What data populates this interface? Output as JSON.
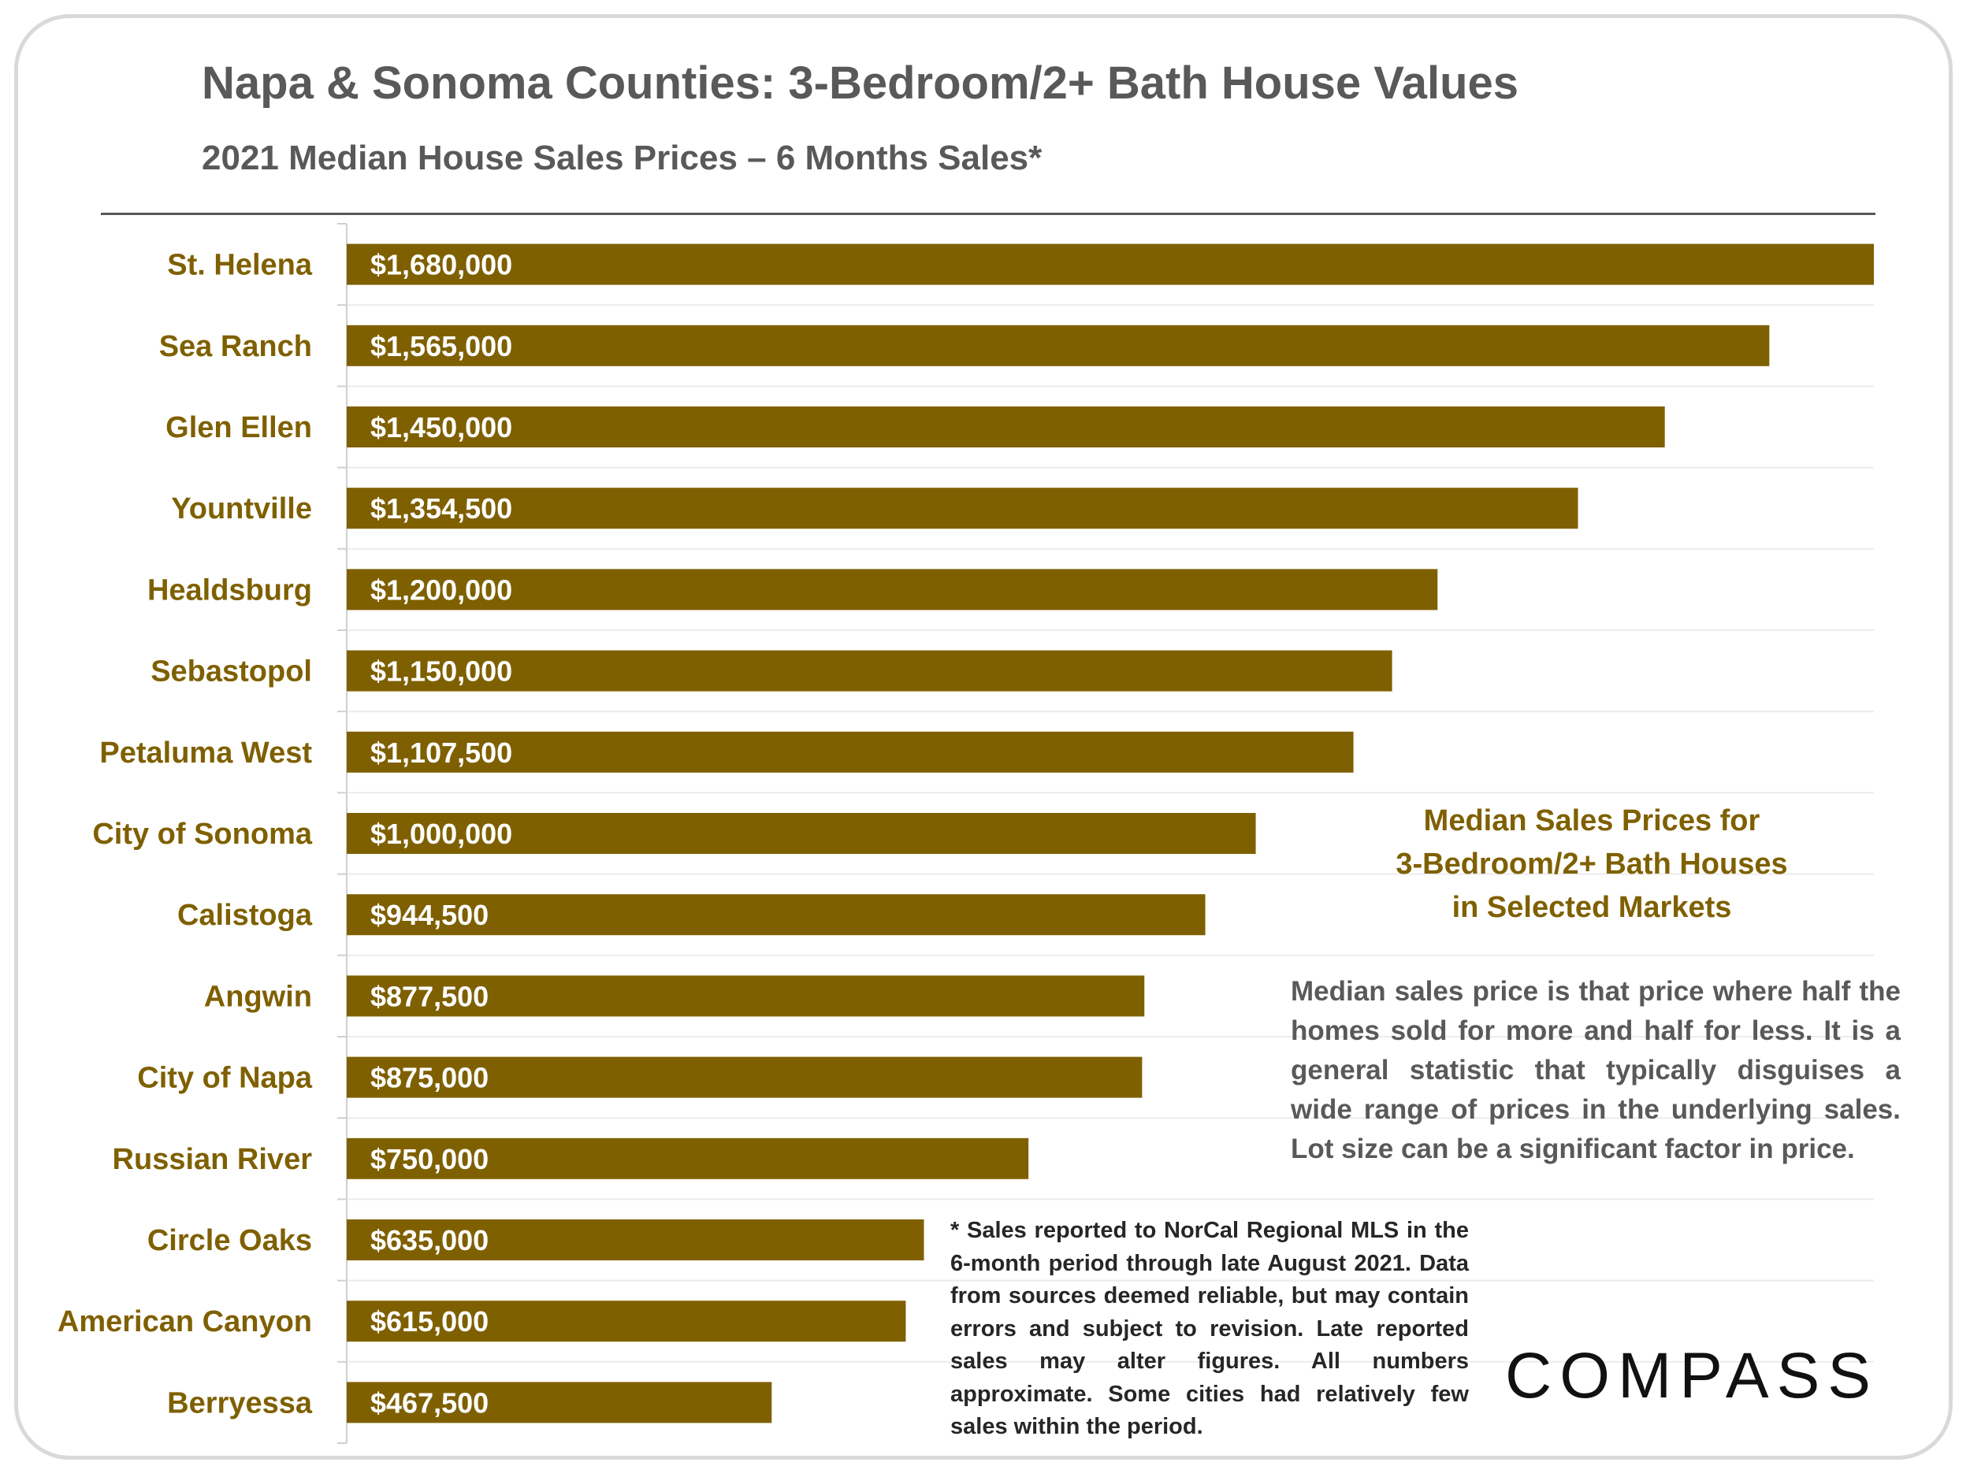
{
  "header": {
    "title": "Napa & Sonoma Counties: 3-Bedroom/2+ Bath House Values",
    "subtitle": "2021 Median House Sales Prices – 6 Months Sales*"
  },
  "chart_data": {
    "type": "bar",
    "orientation": "horizontal",
    "categories": [
      "St. Helena",
      "Sea Ranch",
      "Glen Ellen",
      "Yountville",
      "Healdsburg",
      "Sebastopol",
      "Petaluma West",
      "City of Sonoma",
      "Calistoga",
      "Angwin",
      "City of Napa",
      "Russian River",
      "Circle Oaks",
      "American Canyon",
      "Berryessa"
    ],
    "values": [
      1680000,
      1565000,
      1450000,
      1354500,
      1200000,
      1150000,
      1107500,
      1000000,
      944500,
      877500,
      875000,
      750000,
      635000,
      615000,
      467500
    ],
    "data_labels": [
      "$1,680,000",
      "$1,565,000",
      "$1,450,000",
      "$1,354,500",
      "$1,200,000",
      "$1,150,000",
      "$1,107,500",
      "$1,000,000",
      "$944,500",
      "$877,500",
      "$875,000",
      "$750,000",
      "$635,000",
      "$615,000",
      "$467,500"
    ],
    "xlim": [
      0,
      1680000
    ],
    "grid": true,
    "bar_color": "#7f6000",
    "label_color": "#7f6000"
  },
  "annotation": {
    "heading_lines": [
      "Median Sales Prices for",
      "3-Bedroom/2+ Bath Houses",
      "in Selected Markets"
    ],
    "body": "Median sales price is that price where half the homes sold for more and half for less. It is a general statistic that typically disguises a wide range of prices in the underlying sales. Lot size can be a significant factor in price."
  },
  "footnote": "* Sales reported to NorCal Regional MLS in the 6-month period through late August 2021. Data from sources deemed reliable, but may contain errors and subject to revision. Late reported sales may alter figures. All numbers approximate. Some cities had relatively few sales within the period.",
  "logo": {
    "text": "COMPASS"
  }
}
